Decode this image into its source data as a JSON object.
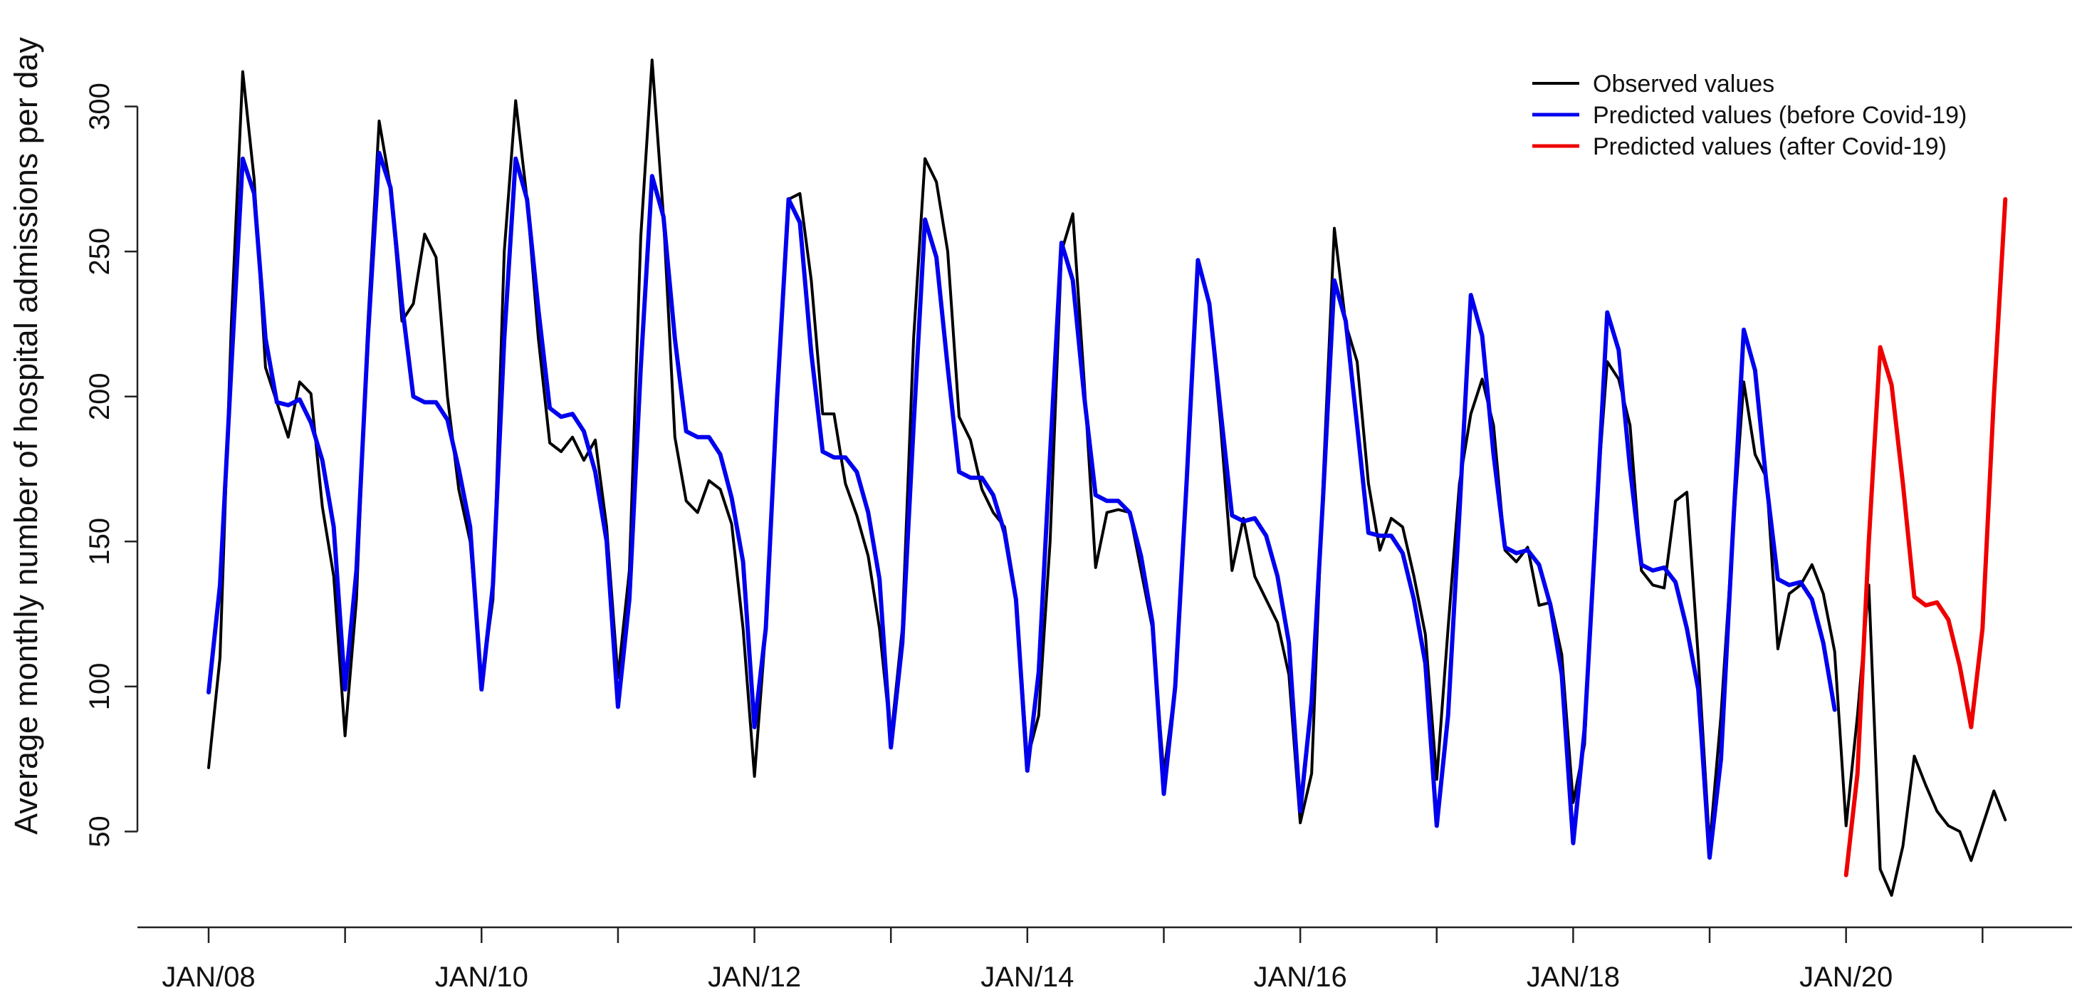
{
  "chart_data": {
    "type": "line",
    "title": "",
    "xlabel": "",
    "ylabel": "Average monthly number of hospital admissions per day",
    "ylim": [
      15,
      330
    ],
    "xlim": [
      "2008-01",
      "2021-03"
    ],
    "y_ticks": [
      50,
      100,
      150,
      200,
      250,
      300
    ],
    "x_tick_labels": [
      "JAN/08",
      "JAN/10",
      "JAN/12",
      "JAN/14",
      "JAN/16",
      "JAN/18",
      "JAN/20"
    ],
    "grid": false,
    "legend_position": "top-right",
    "series": [
      {
        "name": "Observed values",
        "color": "#000000",
        "start": "2008-01",
        "values": [
          72,
          110,
          225,
          312,
          275,
          210,
          198,
          186,
          205,
          201,
          162,
          138,
          83,
          130,
          225,
          295,
          272,
          226,
          232,
          256,
          248,
          200,
          168,
          150,
          101,
          130,
          250,
          302,
          268,
          220,
          184,
          181,
          186,
          178,
          185,
          155,
          103,
          140,
          255,
          316,
          262,
          186,
          164,
          160,
          171,
          168,
          156,
          120,
          69,
          120,
          200,
          268,
          270,
          240,
          194,
          194,
          170,
          159,
          145,
          120,
          82,
          120,
          220,
          282,
          274,
          250,
          193,
          185,
          168,
          160,
          155,
          131,
          75,
          90,
          150,
          250,
          263,
          205,
          141,
          160,
          161,
          160,
          140,
          120,
          70,
          100,
          170,
          247,
          232,
          190,
          140,
          158,
          138,
          130,
          122,
          104,
          53,
          70,
          170,
          258,
          225,
          212,
          170,
          147,
          158,
          155,
          138,
          118,
          68,
          120,
          170,
          194,
          206,
          190,
          147,
          143,
          148,
          128,
          129,
          111,
          60,
          80,
          160,
          212,
          206,
          190,
          140,
          135,
          134,
          164,
          167,
          110,
          45,
          90,
          150,
          205,
          180,
          172,
          113,
          132,
          135,
          142,
          132,
          112,
          52,
          90,
          135,
          37,
          28,
          45,
          76,
          66,
          57,
          52,
          50,
          40,
          52,
          64,
          54
        ]
      },
      {
        "name": "Predicted values (before Covid-19)",
        "color": "#0000EE",
        "start": "2008-01",
        "values": [
          98,
          135,
          210,
          282,
          270,
          220,
          198,
          197,
          199,
          191,
          178,
          155,
          99,
          140,
          220,
          284,
          272,
          232,
          200,
          198,
          198,
          192,
          175,
          155,
          99,
          135,
          220,
          282,
          268,
          230,
          196,
          193,
          194,
          188,
          174,
          150,
          93,
          130,
          210,
          276,
          262,
          220,
          188,
          186,
          186,
          180,
          165,
          143,
          86,
          120,
          200,
          268,
          260,
          215,
          181,
          179,
          179,
          174,
          160,
          137,
          79,
          115,
          190,
          261,
          248,
          210,
          174,
          172,
          172,
          166,
          153,
          130,
          71,
          105,
          180,
          253,
          240,
          200,
          166,
          164,
          164,
          160,
          145,
          122,
          63,
          100,
          170,
          247,
          232,
          195,
          159,
          157,
          158,
          152,
          138,
          115,
          57,
          95,
          165,
          240,
          226,
          190,
          153,
          152,
          152,
          146,
          130,
          108,
          52,
          90,
          160,
          235,
          221,
          180,
          148,
          146,
          147,
          142,
          128,
          104,
          46,
          85,
          155,
          229,
          216,
          175,
          142,
          140,
          141,
          136,
          120,
          99,
          41,
          75,
          150,
          223,
          209,
          170,
          137,
          135,
          136,
          130,
          115,
          92
        ]
      },
      {
        "name": "Predicted values (after Covid-19)",
        "color": "#EE0000",
        "start": "2020-01",
        "values": [
          35,
          70,
          150,
          217,
          204,
          170,
          131,
          128,
          129,
          123,
          107,
          86,
          120,
          200,
          268
        ]
      }
    ]
  }
}
